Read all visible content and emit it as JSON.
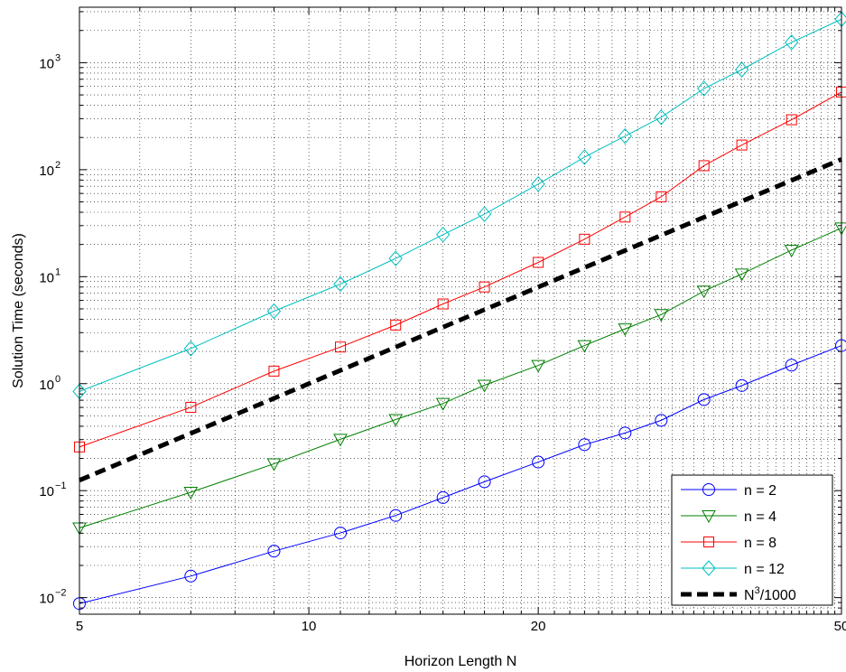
{
  "chart_data": {
    "type": "line",
    "xscale": "log",
    "yscale": "log",
    "xlabel": "Horizon Length N",
    "ylabel": "Solution Time (seconds)",
    "xlim": [
      5,
      50
    ],
    "ylim": [
      0.007,
      3300
    ],
    "xticks": [
      {
        "value": 5,
        "label": "5"
      },
      {
        "value": 10,
        "label": "10"
      },
      {
        "value": 20,
        "label": "20"
      },
      {
        "value": 50,
        "label": "50"
      }
    ],
    "yticks": [
      {
        "value": 0.01,
        "base": "10",
        "exp": "−2"
      },
      {
        "value": 0.1,
        "base": "10",
        "exp": "−1"
      },
      {
        "value": 1,
        "base": "10",
        "exp": "0"
      },
      {
        "value": 10,
        "base": "10",
        "exp": "1"
      },
      {
        "value": 100,
        "base": "10",
        "exp": "2"
      },
      {
        "value": 1000,
        "base": "10",
        "exp": "3"
      }
    ],
    "grid": true,
    "legend_position": "bottom-right",
    "x": [
      5,
      7,
      9,
      11,
      13,
      15,
      17,
      20,
      23,
      26,
      29,
      33,
      37,
      43,
      50
    ],
    "series": [
      {
        "name": "n = 2",
        "color": "#0000ff",
        "marker": "circle",
        "values": [
          0.0088,
          0.0159,
          0.0272,
          0.0402,
          0.0586,
          0.0861,
          0.121,
          0.185,
          0.269,
          0.346,
          0.454,
          0.71,
          0.96,
          1.49,
          2.27
        ]
      },
      {
        "name": "n = 4",
        "color": "#008000",
        "marker": "triangle-down",
        "values": [
          0.0448,
          0.0966,
          0.178,
          0.302,
          0.462,
          0.653,
          0.967,
          1.48,
          2.27,
          3.25,
          4.42,
          7.33,
          10.6,
          17.7,
          28.5
        ]
      },
      {
        "name": "n = 8",
        "color": "#ff0000",
        "marker": "square",
        "values": [
          0.256,
          0.601,
          1.31,
          2.2,
          3.53,
          5.56,
          8.02,
          13.6,
          22.4,
          36.1,
          55.8,
          109,
          170,
          293,
          532
        ]
      },
      {
        "name": "n = 12",
        "color": "#00bfbf",
        "marker": "diamond",
        "values": [
          0.846,
          2.13,
          4.76,
          8.53,
          14.8,
          24.7,
          38.4,
          73.4,
          131,
          206,
          309,
          573,
          861,
          1550,
          2550
        ]
      },
      {
        "name": "N³/1000",
        "legend_base": "N",
        "legend_sup": "3",
        "legend_rest": "/1000",
        "color": "#000000",
        "style": "dashed",
        "values": [
          0.125,
          0.343,
          0.729,
          1.331,
          2.197,
          3.375,
          4.913,
          8.0,
          12.167,
          17.576,
          24.389,
          35.937,
          50.653,
          79.507,
          125.0
        ]
      }
    ]
  }
}
